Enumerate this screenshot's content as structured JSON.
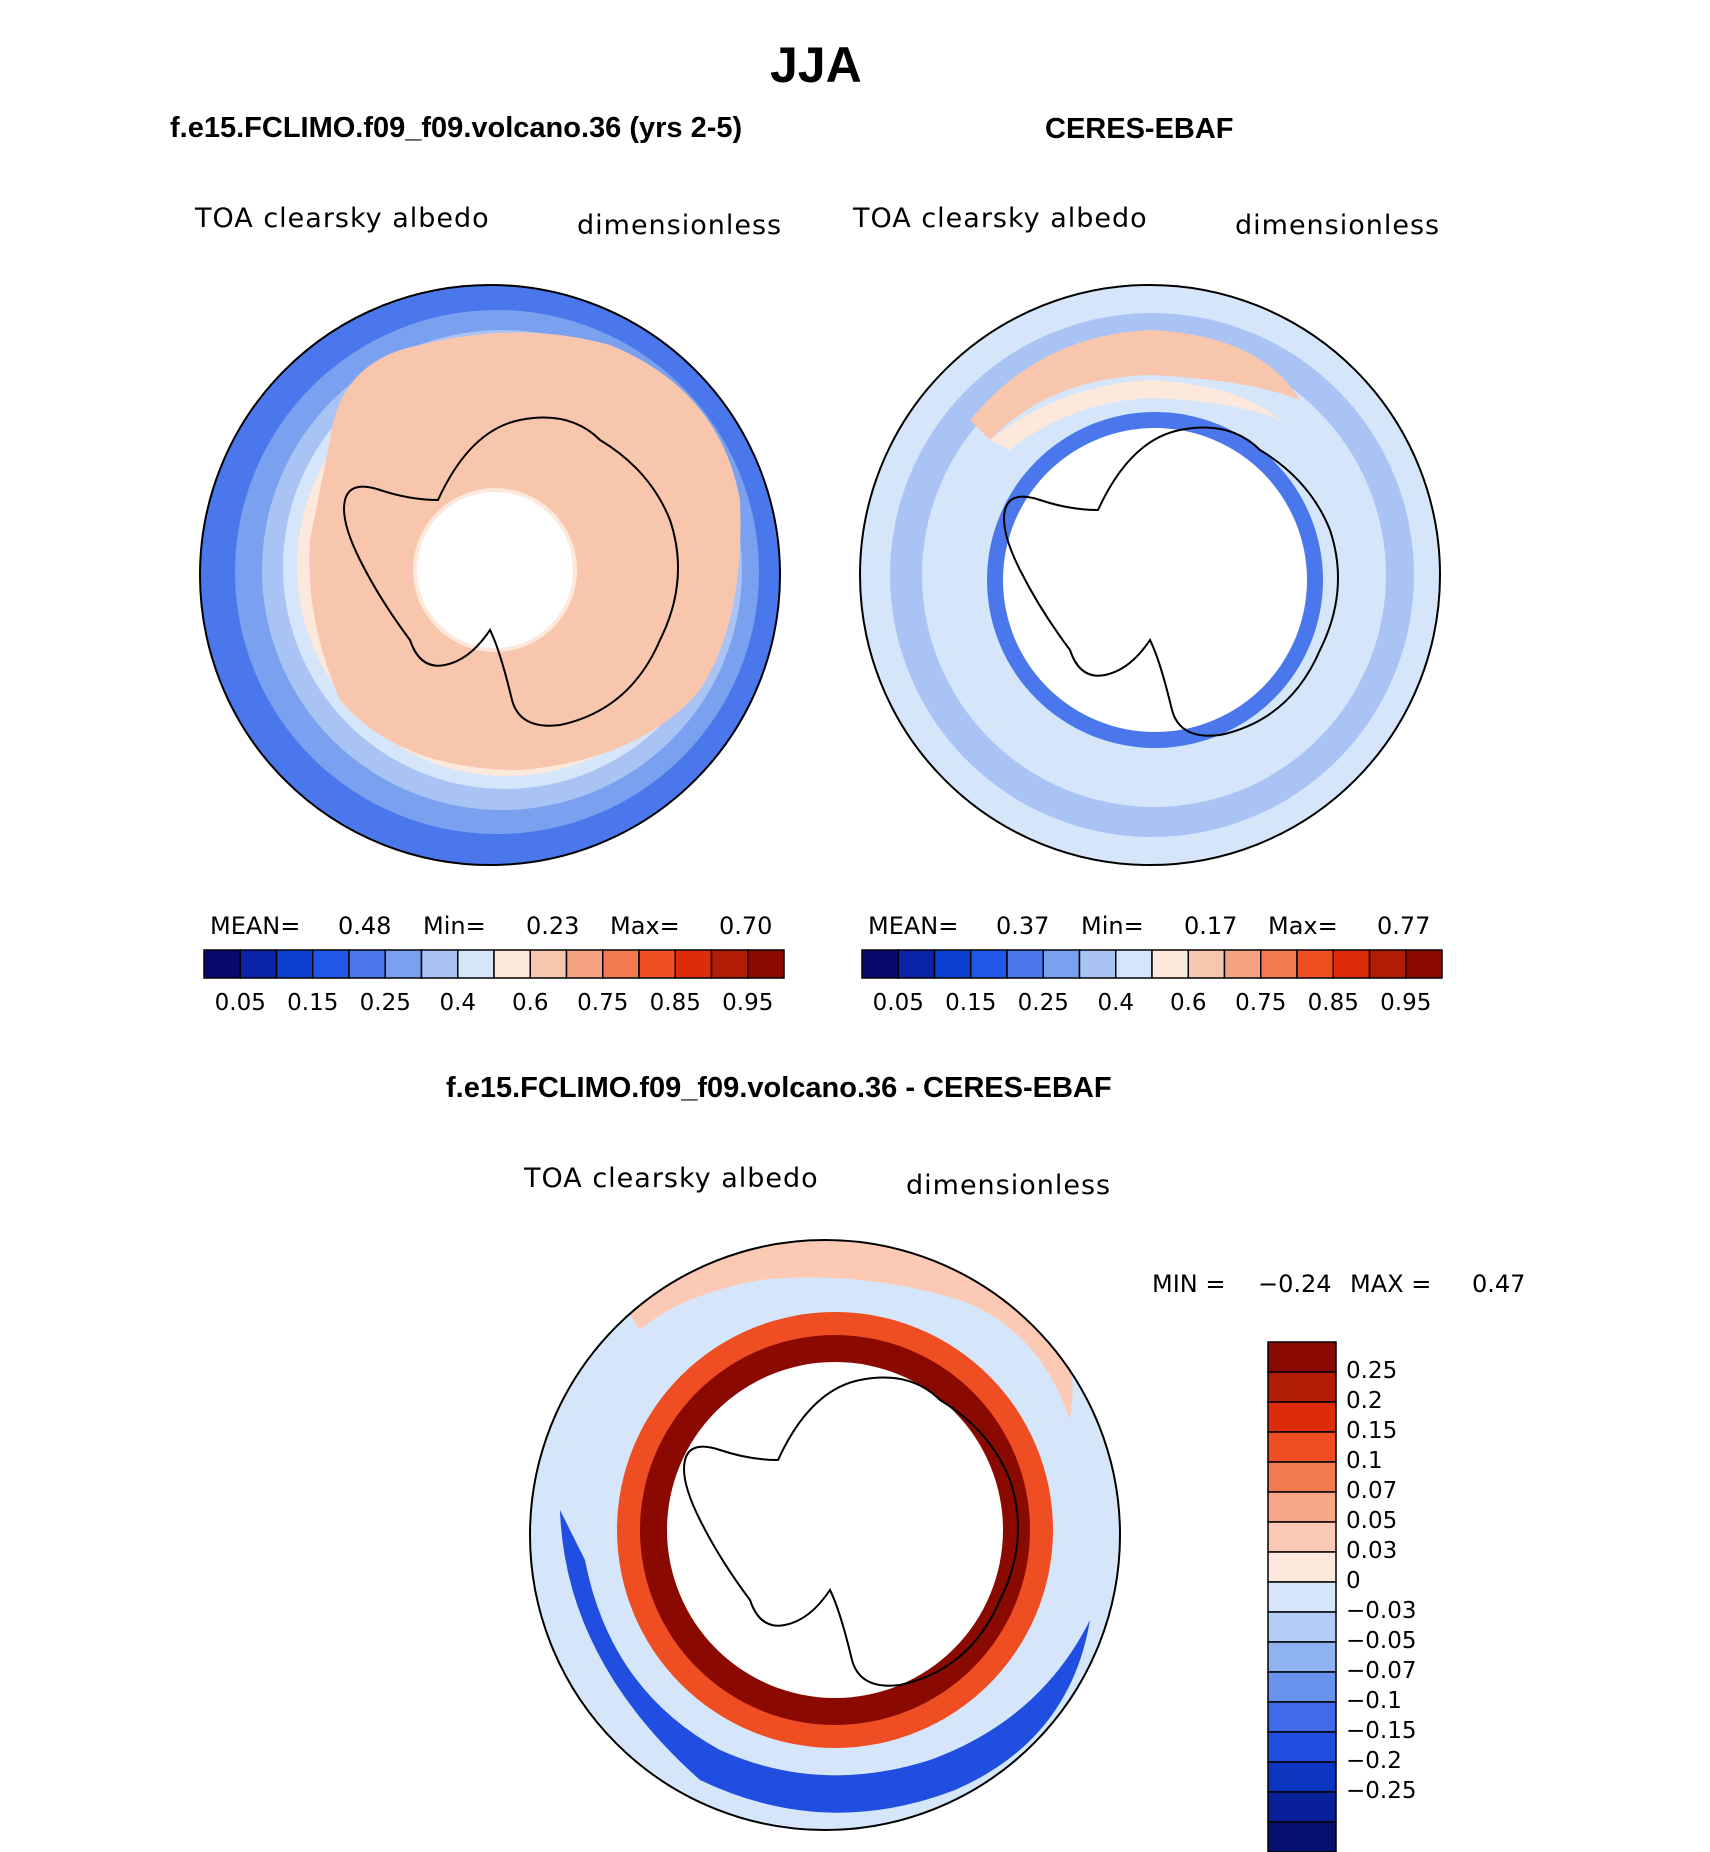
{
  "figure": {
    "title": "JJA"
  },
  "palettes": {
    "abs": [
      "#08086e",
      "#0a23a8",
      "#0b3fd2",
      "#2157e8",
      "#4a78ec",
      "#7aa0f0",
      "#a9c3f5",
      "#d6e6fa",
      "#fde8dc",
      "#f8c6ad",
      "#f5a281",
      "#f47a50",
      "#ef4d22",
      "#dc2c0c",
      "#b21b05",
      "#8a0a02"
    ],
    "diff": [
      "#8a0a02",
      "#b21b05",
      "#dc2c0c",
      "#ef4d22",
      "#f47a50",
      "#f8a688",
      "#fccab4",
      "#fde8dc",
      "#d6e6fa",
      "#b3cdf6",
      "#8fb2f3",
      "#6a93ee",
      "#3f6be8",
      "#1f4ee0",
      "#0c35c2",
      "#08209a",
      "#06106e"
    ]
  },
  "panels": {
    "model": {
      "heading": "f.e15.FCLIMO.f09_f09.volcano.36 (yrs 2-5)",
      "left_label": "TOA clearsky albedo",
      "right_label": "dimensionless",
      "stats": {
        "mean_label": "MEAN=",
        "mean": "0.48",
        "min_label": "Min=",
        "min": "0.23",
        "max_label": "Max=",
        "max": "0.70"
      },
      "colorbar_ticks": [
        "0.05",
        "0.15",
        "0.25",
        "0.4",
        "0.6",
        "0.75",
        "0.85",
        "0.95"
      ]
    },
    "obs": {
      "heading": "CERES-EBAF",
      "left_label": "TOA clearsky albedo",
      "right_label": "dimensionless",
      "stats": {
        "mean_label": "MEAN=",
        "mean": "0.37",
        "min_label": "Min=",
        "min": "0.17",
        "max_label": "Max=",
        "max": "0.77"
      },
      "colorbar_ticks": [
        "0.05",
        "0.15",
        "0.25",
        "0.4",
        "0.6",
        "0.75",
        "0.85",
        "0.95"
      ]
    },
    "diff": {
      "heading": "f.e15.FCLIMO.f09_f09.volcano.36 - CERES-EBAF",
      "left_label": "TOA clearsky albedo",
      "right_label": "dimensionless",
      "stats": {
        "min_label": "MIN =",
        "min": "−0.24",
        "max_label": "MAX =",
        "max": "0.47"
      },
      "colorbar_ticks": [
        "0.25",
        "0.2",
        "0.15",
        "0.1",
        "0.07",
        "0.05",
        "0.03",
        "0",
        "−0.03",
        "−0.05",
        "−0.07",
        "−0.1",
        "−0.15",
        "−0.2",
        "−0.25"
      ]
    }
  }
}
